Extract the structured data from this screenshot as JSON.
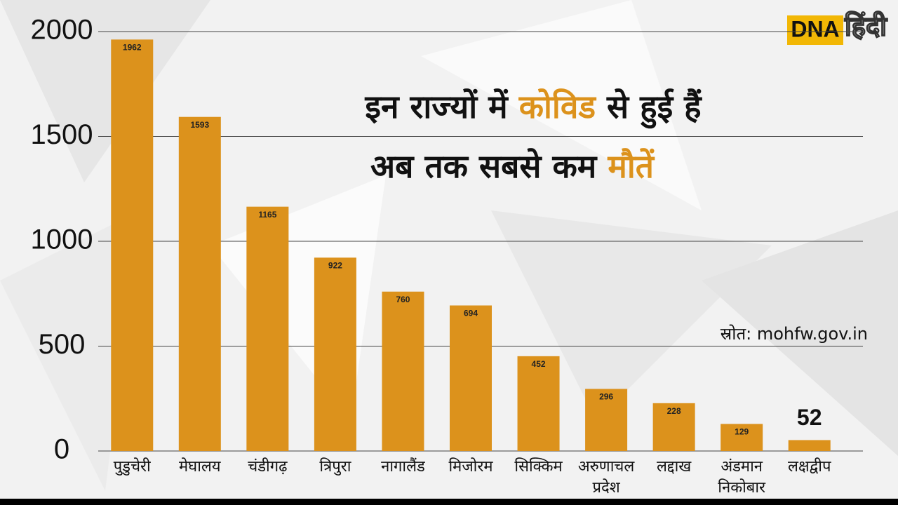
{
  "chart_data": {
    "type": "bar",
    "title_lines": [
      [
        "इन राज्यों में ",
        "कोविड",
        " से हुई हैं"
      ],
      [
        "अब तक सबसे कम ",
        "मौतें"
      ]
    ],
    "source": "स्रोत: mohfw.gov.in",
    "logo": [
      "DNA",
      "हिंदी"
    ],
    "categories": [
      "पुडुचेरी",
      "मेघालय",
      "चंडीगढ़",
      "त्रिपुरा",
      "नागालैंड",
      "मिजोरम",
      "सिक्किम",
      [
        "अरुणाचल",
        "प्रदेश"
      ],
      "लद्दाख",
      [
        "अंडमान",
        "निकोबार"
      ],
      "लक्षद्वीप"
    ],
    "values": [
      1962,
      1593,
      1165,
      922,
      760,
      694,
      452,
      296,
      228,
      129,
      52
    ],
    "color": "#dc921c",
    "ylim": [
      0,
      2000
    ],
    "yticks": [
      0,
      500,
      1000,
      1500,
      2000
    ],
    "grid": true
  }
}
